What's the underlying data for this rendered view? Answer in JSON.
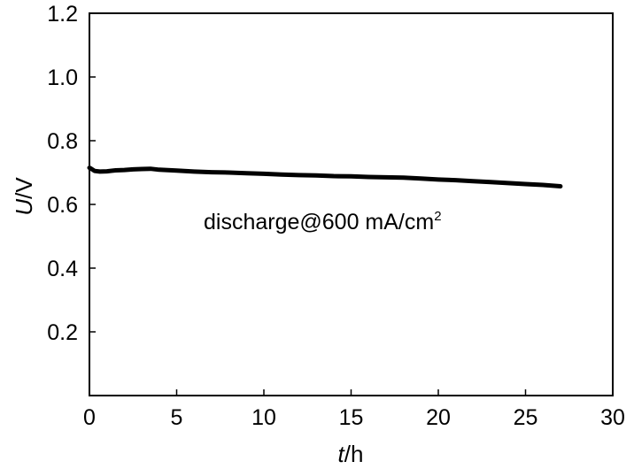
{
  "chart_data": {
    "type": "line",
    "xlabel_italic": "t",
    "xlabel_unit": "/h",
    "ylabel_italic": "U",
    "ylabel_unit": "/V",
    "annotation_main": "discharge@600 mA/cm",
    "annotation_sup": "2",
    "xlim": [
      0,
      30
    ],
    "ylim": [
      0,
      1.2
    ],
    "xticks": [
      "0",
      "5",
      "10",
      "15",
      "20",
      "25",
      "30"
    ],
    "yticks": [
      "0.2",
      "0.4",
      "0.6",
      "0.8",
      "1.0",
      "1.2"
    ],
    "grid": false,
    "series": [
      {
        "color": "#000000",
        "x": [
          0,
          0.1,
          0.3,
          0.6,
          1.0,
          1.5,
          2.0,
          2.5,
          3.0,
          3.5,
          4.0,
          5,
          6,
          7,
          8,
          9,
          10,
          11,
          12,
          13,
          14,
          15,
          16,
          17,
          18,
          19,
          20,
          21,
          22,
          23,
          24,
          25,
          26,
          27
        ],
        "y": [
          0.715,
          0.712,
          0.705,
          0.703,
          0.704,
          0.707,
          0.708,
          0.71,
          0.711,
          0.712,
          0.709,
          0.706,
          0.703,
          0.701,
          0.7,
          0.698,
          0.696,
          0.694,
          0.692,
          0.691,
          0.689,
          0.688,
          0.686,
          0.685,
          0.684,
          0.681,
          0.678,
          0.676,
          0.673,
          0.67,
          0.667,
          0.664,
          0.661,
          0.657
        ]
      }
    ]
  }
}
